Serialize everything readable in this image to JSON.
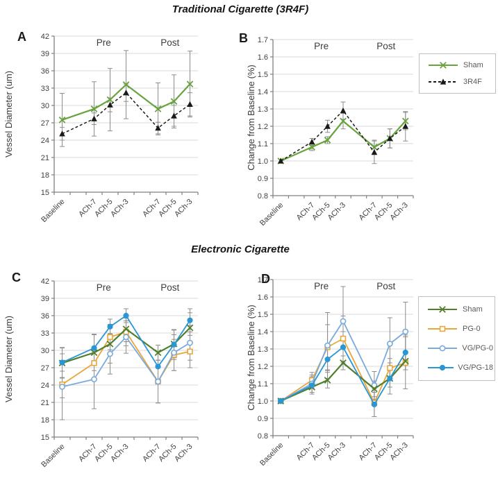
{
  "page": {
    "top_title": "Traditional Cigarette (3R4F)",
    "bottom_title": "Electronic Cigarette"
  },
  "colors": {
    "grid": "#D9D9D9",
    "axis": "#7F7F7F",
    "error_bar": "#8C8C8C",
    "tick_text": "#404040",
    "legend_text": "#595959"
  },
  "chart_data": [
    {
      "panel": "A",
      "type": "line",
      "ylabel": "Vessel Diameter (um)",
      "xlabel": "",
      "ylim": [
        15,
        42
      ],
      "ytick_step": 3,
      "grid": true,
      "categories": [
        "Baseline",
        "ACh-7",
        "ACh-5",
        "ACh-3",
        "ACh-7",
        "ACh-5",
        "ACh-3"
      ],
      "category_slots": [
        0,
        2,
        3,
        4,
        6,
        7,
        8
      ],
      "total_slots": 9,
      "group_labels": [
        {
          "text": "Pre",
          "slot": 3.1
        },
        {
          "text": "Post",
          "slot": 7.25
        }
      ],
      "series": [
        {
          "name": "Sham",
          "color": "#68A33E",
          "line": "solid",
          "marker": "x",
          "width": 2.2,
          "values": [
            27.5,
            29.4,
            31.0,
            33.6,
            29.4,
            30.7,
            33.7
          ],
          "errors": [
            4.6,
            4.7,
            5.4,
            5.9,
            4.5,
            4.6,
            5.7
          ]
        },
        {
          "name": "3R4F",
          "color": "#1A1A1A",
          "line": "dashed",
          "marker": "triangle-filled",
          "width": 1.5,
          "values": [
            25.1,
            27.7,
            30.1,
            32.2,
            26.1,
            28.2,
            30.2
          ],
          "errors": [
            1.1,
            1.0,
            1.2,
            1.5,
            1.0,
            1.8,
            2.0
          ]
        }
      ]
    },
    {
      "panel": "B",
      "type": "line",
      "ylabel": "Change from Baseline (%)",
      "xlabel": "",
      "ylim": [
        0.8,
        1.7
      ],
      "ytick_step": 0.1,
      "grid": true,
      "legend_position": "right",
      "legend": [
        "Sham",
        "3R4F"
      ],
      "categories": [
        "Baseline",
        "ACh-7",
        "ACh-5",
        "ACh-3",
        "ACh-7",
        "ACh-5",
        "ACh-3"
      ],
      "category_slots": [
        0,
        2,
        3,
        4,
        6,
        7,
        8
      ],
      "total_slots": 9,
      "group_labels": [
        {
          "text": "Pre",
          "slot": 3.1
        },
        {
          "text": "Post",
          "slot": 7.25
        }
      ],
      "series": [
        {
          "name": "Sham",
          "color": "#68A33E",
          "line": "solid",
          "marker": "x",
          "width": 2.2,
          "values": [
            1.0,
            1.08,
            1.12,
            1.23,
            1.08,
            1.13,
            1.23
          ],
          "errors": [
            0.01,
            0.02,
            0.02,
            0.045,
            0.04,
            0.055,
            0.05
          ]
        },
        {
          "name": "3R4F",
          "color": "#1A1A1A",
          "line": "dashed",
          "marker": "triangle-filled",
          "width": 1.5,
          "values": [
            1.0,
            1.11,
            1.2,
            1.29,
            1.05,
            1.13,
            1.2
          ],
          "errors": [
            0.01,
            0.02,
            0.035,
            0.05,
            0.065,
            0.055,
            0.085
          ]
        }
      ]
    },
    {
      "panel": "C",
      "type": "line",
      "ylabel": "Vessel Diameter (um)",
      "xlabel": "",
      "ylim": [
        15,
        42
      ],
      "ytick_step": 3,
      "grid": true,
      "categories": [
        "Baseline",
        "ACh-7",
        "ACh-5",
        "ACh-3",
        "ACh-7",
        "ACh-5",
        "ACh-3"
      ],
      "category_slots": [
        0,
        2,
        3,
        4,
        6,
        7,
        8
      ],
      "total_slots": 9,
      "group_labels": [
        {
          "text": "Pre",
          "slot": 3.1
        },
        {
          "text": "Post",
          "slot": 7.25
        }
      ],
      "series": [
        {
          "name": "PG-0",
          "color": "#E9A63B",
          "line": "solid",
          "marker": "square-open",
          "width": 1.8,
          "values": [
            24.1,
            27.8,
            32.3,
            33.2,
            24.6,
            29.2,
            29.8
          ],
          "errors": [
            2.3,
            2.7,
            2.2,
            2.4,
            3.7,
            2.7,
            2.8
          ]
        },
        {
          "name": "VG/PG-0",
          "color": "#78AADC",
          "line": "solid",
          "marker": "circle-open",
          "width": 1.8,
          "values": [
            23.7,
            25.0,
            29.4,
            32.3,
            24.6,
            29.6,
            31.3
          ],
          "errors": [
            5.7,
            5.1,
            3.5,
            2.8,
            3.7,
            3.1,
            3.0
          ]
        },
        {
          "name": "Sham",
          "color": "#507E2B",
          "line": "solid",
          "marker": "x",
          "width": 2.2,
          "values": [
            27.8,
            29.6,
            31.1,
            33.7,
            29.6,
            31.1,
            33.9
          ],
          "errors": [
            2.6,
            3.1,
            3.3,
            2.2,
            1.3,
            2.4,
            2.6
          ]
        },
        {
          "name": "VG/PG-18",
          "color": "#2A96D4",
          "line": "solid",
          "marker": "circle-filled",
          "width": 1.8,
          "values": [
            27.9,
            30.4,
            34.1,
            36.0,
            27.2,
            31.0,
            35.2
          ],
          "errors": [
            2.6,
            2.4,
            1.3,
            1.2,
            2.6,
            2.6,
            2.0
          ]
        }
      ]
    },
    {
      "panel": "D",
      "type": "line",
      "ylabel": "Change from Baseline (%)",
      "xlabel": "",
      "ylim": [
        0.8,
        1.7
      ],
      "ytick_step": 0.1,
      "grid": true,
      "legend_position": "right",
      "legend": [
        "Sham",
        "PG-0",
        "VG/PG-0",
        "VG/PG-18"
      ],
      "categories": [
        "Baseline",
        "ACh-7",
        "ACh-5",
        "ACh-3",
        "ACh-7",
        "ACh-5",
        "ACh-3"
      ],
      "category_slots": [
        0,
        2,
        3,
        4,
        6,
        7,
        8
      ],
      "total_slots": 9,
      "group_labels": [
        {
          "text": "Pre",
          "slot": 3.1
        },
        {
          "text": "Post",
          "slot": 7.25
        }
      ],
      "series": [
        {
          "name": "PG-0",
          "color": "#E9A63B",
          "line": "solid",
          "marker": "square-open",
          "width": 1.8,
          "values": [
            1.0,
            1.12,
            1.31,
            1.36,
            0.99,
            1.19,
            1.22
          ],
          "errors": [
            0.01,
            0.045,
            0.13,
            0.13,
            0.08,
            0.055,
            0.15
          ]
        },
        {
          "name": "VG/PG-0",
          "color": "#78AADC",
          "line": "solid",
          "marker": "circle-open",
          "width": 1.8,
          "values": [
            1.0,
            1.1,
            1.32,
            1.46,
            1.09,
            1.33,
            1.4
          ],
          "errors": [
            0.01,
            0.05,
            0.19,
            0.2,
            0.08,
            0.15,
            0.17
          ]
        },
        {
          "name": "Sham",
          "color": "#507E2B",
          "line": "solid",
          "marker": "x",
          "width": 2.2,
          "values": [
            1.0,
            1.08,
            1.12,
            1.22,
            1.07,
            1.13,
            1.23
          ],
          "errors": [
            0.01,
            0.04,
            0.045,
            0.04,
            0.045,
            0.05,
            0.05
          ]
        },
        {
          "name": "VG/PG-18",
          "color": "#2A96D4",
          "line": "solid",
          "marker": "circle-filled",
          "width": 1.8,
          "values": [
            1.0,
            1.09,
            1.24,
            1.31,
            0.98,
            1.13,
            1.28
          ],
          "errors": [
            0.01,
            0.05,
            0.065,
            0.09,
            0.07,
            0.09,
            0.1
          ]
        }
      ]
    }
  ],
  "legends": {
    "traditional": {
      "order": [
        "Sham",
        "3R4F"
      ]
    },
    "electronic": {
      "order": [
        "Sham",
        "PG-0",
        "VG/PG-0",
        "VG/PG-18"
      ]
    }
  }
}
